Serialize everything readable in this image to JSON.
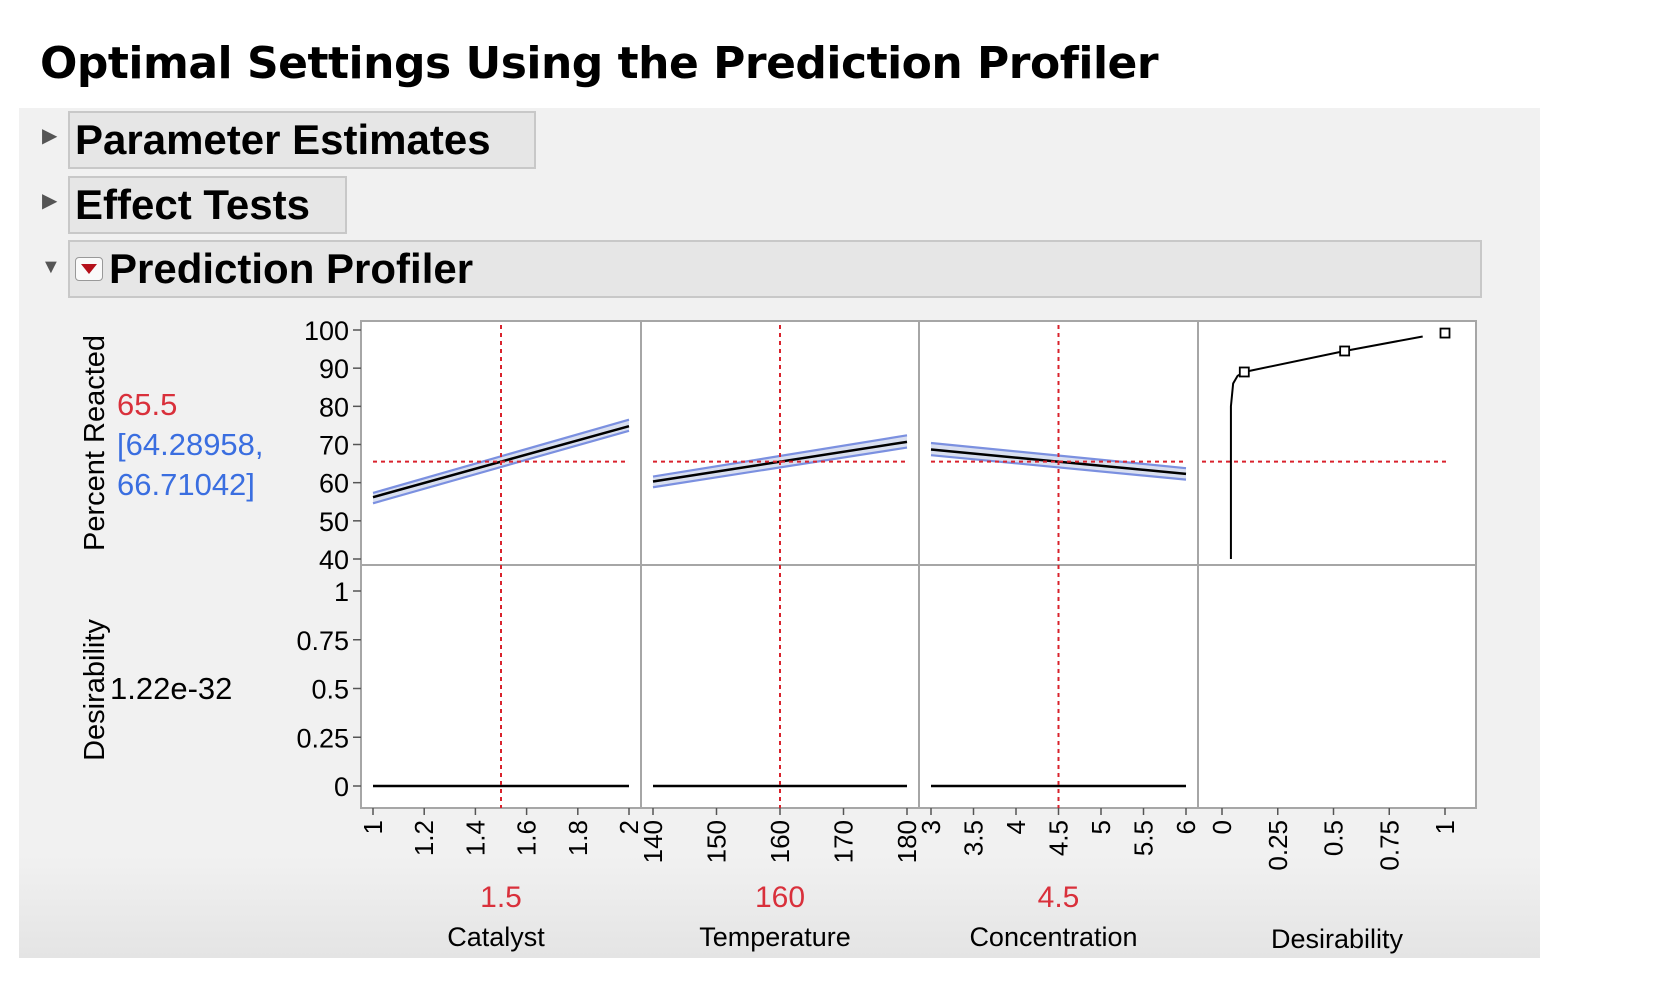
{
  "page": {
    "title": "Optimal Settings Using the Prediction Profiler"
  },
  "outline": [
    {
      "label": "Parameter Estimates",
      "expanded": false
    },
    {
      "label": "Effect Tests",
      "expanded": false
    },
    {
      "label": "Prediction Profiler",
      "expanded": true
    }
  ],
  "icons": {
    "collapsed": "triangle-right-icon",
    "expanded": "triangle-down-icon",
    "menu": "red-triangle-menu-icon"
  },
  "colors": {
    "crosshair": "#d9232d",
    "value_red": "#d9303b",
    "ci_blue": "#3a6ee0",
    "ci_band": "#7b90e0"
  },
  "profiler": {
    "response": {
      "label": "Percent Reacted",
      "value": "65.5",
      "ci_lines": [
        "[64.28958,",
        "66.71042]"
      ],
      "yticks": [
        "100",
        "90",
        "80",
        "70",
        "60",
        "50",
        "40"
      ]
    },
    "desirability": {
      "label": "Desirability",
      "value": "1.22e-32",
      "yticks": [
        "1",
        "0.75",
        "0.5",
        "0.25",
        "0"
      ]
    },
    "factors": [
      {
        "name": "Catalyst",
        "current": "1.5",
        "ticks": [
          "1",
          "1.2",
          "1.4",
          "1.6",
          "1.8",
          "2"
        ]
      },
      {
        "name": "Temperature",
        "current": "160",
        "ticks": [
          "140",
          "150",
          "160",
          "170",
          "180"
        ]
      },
      {
        "name": "Concentration",
        "current": "4.5",
        "ticks": [
          "3",
          "3.5",
          "4",
          "4.5",
          "5",
          "5.5",
          "6"
        ]
      },
      {
        "name": "Desirability",
        "current": "",
        "ticks": [
          "0",
          "0.25",
          "0.5",
          "0.75",
          "1"
        ]
      }
    ]
  },
  "chart_data": {
    "type": "line",
    "y_range": [
      40,
      100
    ],
    "desirability_range": [
      0,
      1
    ],
    "current_prediction": 65.5,
    "panels": [
      {
        "factor": "Catalyst",
        "x_range": [
          1,
          2
        ],
        "current": 1.5,
        "pred": [
          [
            1,
            56.2
          ],
          [
            2,
            74.8
          ]
        ],
        "lower": [
          [
            1,
            54.6
          ],
          [
            2,
            73.6
          ]
        ],
        "upper": [
          [
            1,
            57.3
          ],
          [
            2,
            76.5
          ]
        ],
        "desirability": [
          [
            1,
            0
          ],
          [
            2,
            0
          ]
        ]
      },
      {
        "factor": "Temperature",
        "x_range": [
          140,
          180
        ],
        "current": 160,
        "pred": [
          [
            140,
            60.3
          ],
          [
            180,
            70.7
          ]
        ],
        "lower": [
          [
            140,
            58.8
          ],
          [
            180,
            69.2
          ]
        ],
        "upper": [
          [
            140,
            61.6
          ],
          [
            180,
            72.4
          ]
        ],
        "desirability": [
          [
            140,
            0
          ],
          [
            180,
            0
          ]
        ]
      },
      {
        "factor": "Concentration",
        "x_range": [
          3,
          6
        ],
        "current": 4.5,
        "pred": [
          [
            3,
            68.7
          ],
          [
            6,
            62.3
          ]
        ],
        "lower": [
          [
            3,
            67.2
          ],
          [
            6,
            60.8
          ]
        ],
        "upper": [
          [
            3,
            70.4
          ],
          [
            6,
            63.8
          ]
        ],
        "desirability": [
          [
            3,
            0
          ],
          [
            6,
            0
          ]
        ]
      }
    ],
    "desirability_function": {
      "x_range": [
        0,
        1
      ],
      "curve": [
        [
          0.04,
          40
        ],
        [
          0.04,
          80
        ],
        [
          0.05,
          86
        ],
        [
          0.07,
          88
        ],
        [
          0.1,
          89
        ],
        [
          0.55,
          94.5
        ],
        [
          0.9,
          98.3
        ]
      ],
      "handles": [
        [
          0.1,
          89
        ],
        [
          0.55,
          94.5
        ],
        [
          1.0,
          99.2
        ]
      ]
    }
  }
}
